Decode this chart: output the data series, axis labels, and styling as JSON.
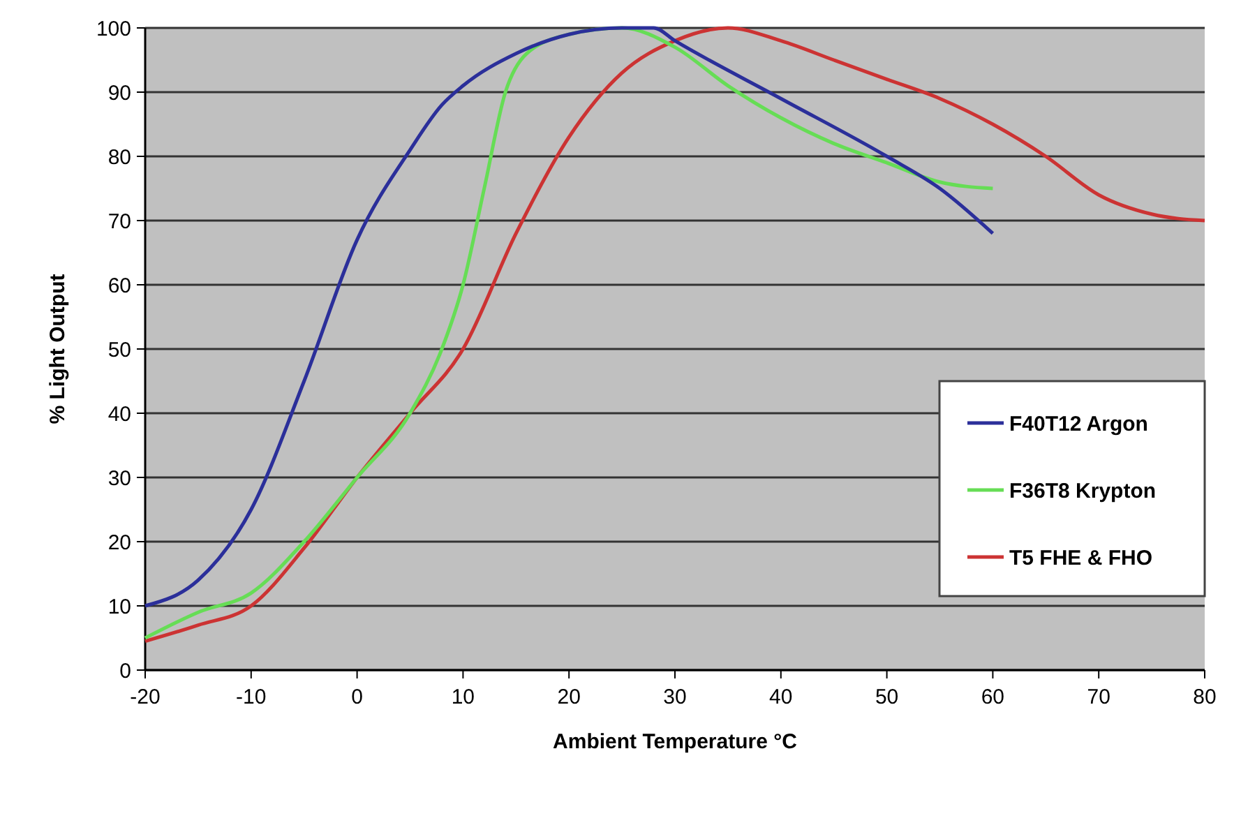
{
  "chart_data": {
    "type": "line",
    "xlabel": "Ambient Temperature °C",
    "ylabel": "% Light Output",
    "xlim": [
      -20,
      80
    ],
    "xticks": [
      -20,
      -10,
      0,
      10,
      20,
      30,
      40,
      50,
      60,
      70,
      80
    ],
    "ylim": [
      0,
      100
    ],
    "yticks": [
      0,
      10,
      20,
      30,
      40,
      50,
      60,
      70,
      80,
      90,
      100
    ],
    "grid": "y",
    "legend": "right",
    "marker": "none",
    "line_style": "solid",
    "series": [
      {
        "name": "F40T12 Argon",
        "color": "#2b2f9a",
        "x": [
          -20,
          -15,
          -10,
          -5,
          0,
          5,
          8,
          10,
          15,
          20,
          25,
          28,
          30,
          40,
          50,
          55,
          60
        ],
        "values": [
          10,
          14,
          25,
          45,
          67,
          81,
          88,
          91,
          96,
          99,
          100,
          100,
          98,
          89,
          80,
          75,
          68
        ]
      },
      {
        "name": "F36T8 Krypton",
        "color": "#66dd55",
        "x": [
          -20,
          -15,
          -10,
          -5,
          0,
          5,
          8,
          10,
          12,
          14,
          16,
          20,
          25,
          30,
          35,
          40,
          45,
          50,
          55,
          60
        ],
        "values": [
          5,
          9,
          12,
          20,
          30,
          40,
          50,
          60,
          75,
          90,
          96,
          99,
          100,
          97,
          91,
          86,
          82,
          79,
          76,
          75
        ]
      },
      {
        "name": "T5 FHE & FHO",
        "color": "#cc3333",
        "x": [
          -20,
          -15,
          -10,
          -5,
          0,
          5,
          10,
          15,
          20,
          25,
          30,
          35,
          40,
          45,
          50,
          55,
          60,
          65,
          70,
          75,
          80
        ],
        "values": [
          4.5,
          7,
          10,
          19,
          30,
          40,
          50,
          68,
          83,
          93,
          98,
          100,
          98,
          95,
          92,
          89,
          85,
          80,
          74,
          71,
          70
        ]
      }
    ]
  }
}
